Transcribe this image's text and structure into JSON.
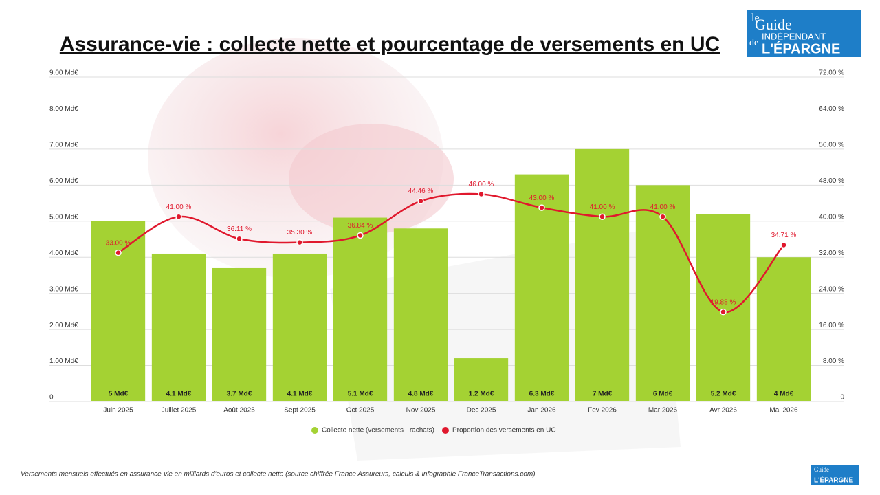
{
  "chart_data": {
    "type": "combo",
    "title": "Assurance-vie : collecte nette et pourcentage de versements en UC",
    "categories": [
      "Juin 2025",
      "Juillet 2025",
      "Août 2025",
      "Sept 2025",
      "Oct 2025",
      "Nov 2025",
      "Dec 2025",
      "Jan 2026",
      "Fev 2026",
      "Mar 2026",
      "Avr 2026",
      "Mai 2026"
    ],
    "series": [
      {
        "name": "Collecte nette (versements - rachats)",
        "type": "bar",
        "axis": "y",
        "color": "#a4d233",
        "values": [
          5,
          4.1,
          3.7,
          4.1,
          5.1,
          4.8,
          1.2,
          6.3,
          7,
          6,
          5.2,
          4
        ],
        "value_labels": [
          "5 Md€",
          "4.1 Md€",
          "3.7 Md€",
          "4.1 Md€",
          "5.1 Md€",
          "4.8 Md€",
          "1.2 Md€",
          "6.3 Md€",
          "7 Md€",
          "6 Md€",
          "5.2 Md€",
          "4 Md€"
        ]
      },
      {
        "name": "Proportion des versements en UC",
        "type": "line",
        "axis": "y2",
        "color": "#e0182d",
        "values": [
          33.0,
          41.0,
          36.11,
          35.3,
          36.84,
          44.46,
          46.0,
          43.0,
          41.0,
          41.0,
          19.88,
          34.71
        ],
        "value_labels": [
          "33.00 %",
          "41.00 %",
          "36.11 %",
          "35.30 %",
          "36.84 %",
          "44.46 %",
          "46.00 %",
          "43.00 %",
          "41.00 %",
          "41.00 %",
          "19.88 %",
          "34.71 %"
        ]
      }
    ],
    "ylim": [
      0,
      9
    ],
    "yticks": [
      0,
      {
        "value": 1,
        "label": "1.00 Md€"
      },
      {
        "value": 2,
        "label": "2.00 Md€"
      },
      {
        "value": 3,
        "label": "3.00 Md€"
      },
      {
        "value": 4,
        "label": "4.00 Md€"
      },
      {
        "value": 5,
        "label": "5.00 Md€"
      },
      {
        "value": 6,
        "label": "6.00 Md€"
      },
      {
        "value": 7,
        "label": "7.00 Md€"
      },
      {
        "value": 8,
        "label": "8.00 Md€"
      },
      {
        "value": 9,
        "label": "9.00 Md€"
      }
    ],
    "y2lim": [
      0,
      72
    ],
    "y2ticks": [
      0,
      {
        "value": 8,
        "label": "8.00 %"
      },
      {
        "value": 16,
        "label": "16.00 %"
      },
      {
        "value": 24,
        "label": "24.00 %"
      },
      {
        "value": 32,
        "label": "32.00 %"
      },
      {
        "value": 40,
        "label": "40.00 %"
      },
      {
        "value": 48,
        "label": "48.00 %"
      },
      {
        "value": 56,
        "label": "56.00 %"
      },
      {
        "value": 64,
        "label": "64.00 %"
      },
      {
        "value": 72,
        "label": "72.00 %"
      }
    ],
    "grid": true
  },
  "footer": "Versements mensuels effectués en assurance-vie en milliards d'euros et collecte nette (source chiffrée France Assureurs, calculs & infographie FranceTransactions.com)",
  "logo": {
    "line1": "le",
    "line2": "Guide",
    "line3": "INDÉPENDANT",
    "line4": "de",
    "line5": "L'ÉPARGNE"
  }
}
